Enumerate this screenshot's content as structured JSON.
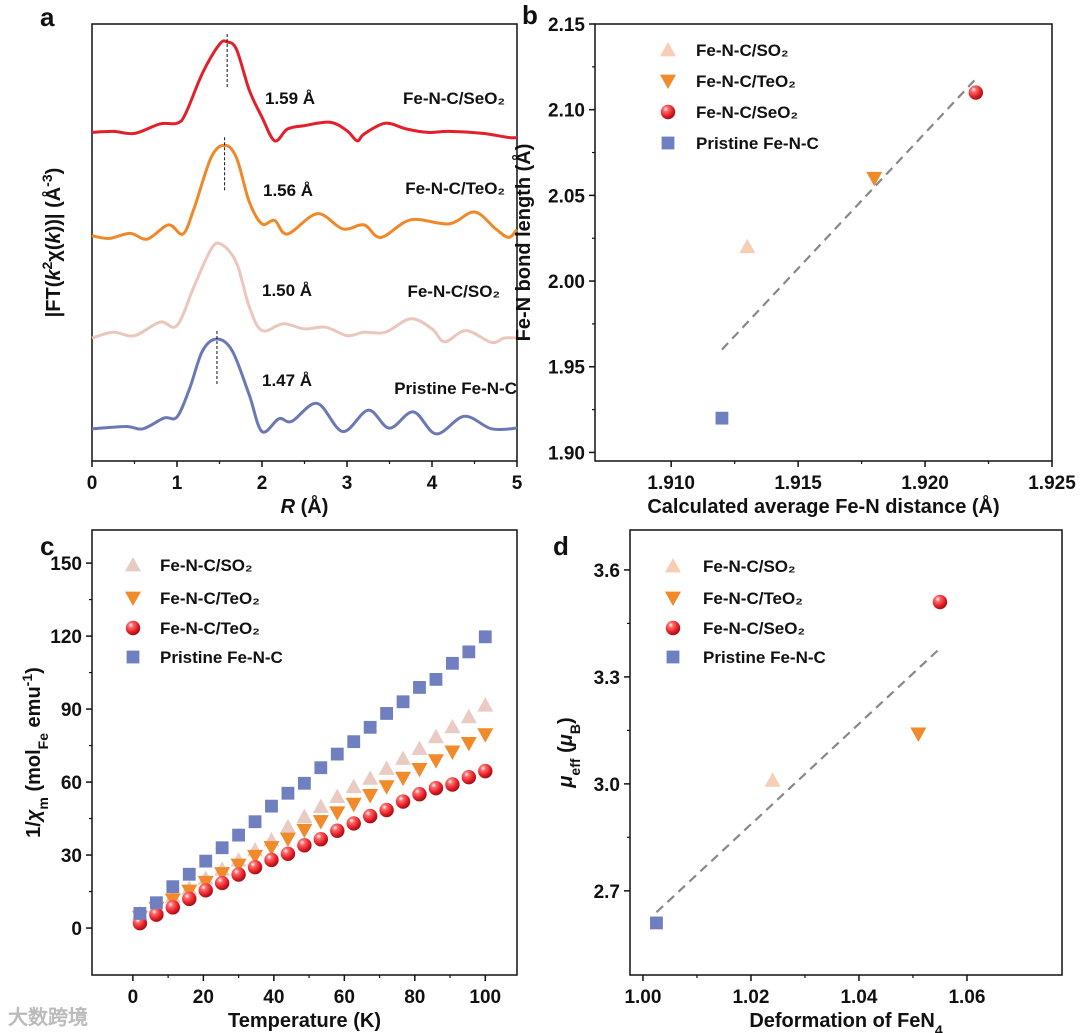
{
  "watermark": "大数跨境",
  "chart_data": [
    {
      "panel": "a",
      "type": "line",
      "xlabel": [
        {
          "t": "R",
          "i": true
        },
        {
          "t": " (Å)"
        }
      ],
      "ylabel": [
        {
          "t": "|FT("
        },
        {
          "t": "k",
          "i": true
        },
        {
          "t": "2",
          "sup": true
        },
        {
          "t": "χ("
        },
        {
          "t": "k",
          "i": true
        },
        {
          "t": "))| (Å"
        },
        {
          "t": "-3",
          "sup": true
        },
        {
          "t": ")"
        }
      ],
      "xlim": [
        0,
        5
      ],
      "ylim": [
        0,
        12.9
      ],
      "xticks": [
        "0",
        "1",
        "2",
        "3",
        "4",
        "5"
      ],
      "xtick_values": [
        0,
        1,
        2,
        3,
        4,
        5
      ],
      "series": [
        {
          "name": "Fe-N-C/SeO₂",
          "color": "#e21f2b",
          "peak": 1.59,
          "peak_label": "1.59 Å",
          "x": [
            0,
            0.25,
            0.5,
            0.8,
            1.0,
            1.1,
            1.3,
            1.5,
            1.59,
            1.7,
            1.85,
            2.0,
            2.15,
            2.3,
            2.5,
            2.8,
            3.0,
            3.12,
            3.2,
            3.45,
            3.7,
            3.95,
            4.2,
            4.6,
            4.9,
            5
          ],
          "y": [
            9.7,
            9.73,
            9.67,
            9.95,
            9.97,
            10.25,
            11.45,
            12.3,
            12.37,
            12.15,
            10.95,
            10.15,
            9.45,
            9.8,
            9.9,
            10.0,
            9.75,
            9.45,
            9.65,
            9.97,
            9.8,
            9.7,
            9.73,
            9.67,
            9.55,
            9.55
          ]
        },
        {
          "name": "Fe-N-C/TeO₂",
          "color": "#f0882a",
          "peak": 1.56,
          "peak_label": "1.56 Å",
          "x": [
            0,
            0.2,
            0.45,
            0.65,
            0.9,
            1.07,
            1.2,
            1.4,
            1.56,
            1.7,
            1.85,
            2.0,
            2.15,
            2.3,
            2.65,
            2.95,
            3.2,
            3.4,
            3.75,
            4.2,
            4.5,
            4.75,
            4.9,
            5
          ],
          "y": [
            6.65,
            6.57,
            6.72,
            6.55,
            6.97,
            6.7,
            7.45,
            8.95,
            9.32,
            8.95,
            7.65,
            7.0,
            7.1,
            6.7,
            7.3,
            6.85,
            6.97,
            6.6,
            7.12,
            7.0,
            7.35,
            6.85,
            6.6,
            6.83
          ]
        },
        {
          "name": "Fe-N-C/SO₂",
          "color": "#ebc6bd",
          "peak": 1.5,
          "peak_label": "1.50 Å",
          "x": [
            0,
            0.25,
            0.5,
            0.8,
            1.0,
            1.2,
            1.4,
            1.52,
            1.7,
            1.85,
            2.0,
            2.25,
            2.5,
            2.75,
            3.0,
            3.2,
            3.45,
            3.75,
            4.0,
            4.15,
            4.4,
            4.7,
            4.85,
            5
          ],
          "y": [
            3.63,
            3.8,
            3.7,
            4.1,
            4.0,
            5.15,
            6.25,
            6.4,
            5.85,
            4.55,
            3.85,
            4.05,
            3.9,
            3.95,
            3.7,
            3.8,
            3.8,
            4.2,
            3.9,
            3.52,
            3.85,
            3.5,
            3.63,
            3.63
          ]
        },
        {
          "name": "Pristine Fe-N-C",
          "color": "#6b78b6",
          "peak": 1.47,
          "peak_label": "1.47 Å",
          "x": [
            0,
            0.4,
            0.6,
            0.85,
            1.0,
            1.15,
            1.3,
            1.47,
            1.65,
            1.85,
            2.0,
            2.2,
            2.35,
            2.65,
            2.95,
            3.25,
            3.5,
            3.78,
            4.05,
            4.38,
            4.7,
            5
          ],
          "y": [
            0.95,
            1.02,
            0.95,
            1.27,
            1.3,
            2.15,
            3.25,
            3.6,
            3.25,
            1.95,
            0.87,
            1.25,
            1.17,
            1.7,
            0.87,
            1.5,
            0.97,
            1.45,
            0.8,
            1.32,
            0.95,
            0.97
          ]
        }
      ]
    },
    {
      "panel": "b",
      "type": "scatter",
      "xlabel": [
        {
          "t": "Calculated average Fe-N distance (Å)"
        }
      ],
      "ylabel": [
        {
          "t": "Fe-N bond length (Å)"
        }
      ],
      "xlim": [
        1.907,
        1.925
      ],
      "ylim": [
        1.895,
        2.15
      ],
      "xticks": [
        "1.910",
        "1.915",
        "1.920",
        "1.925"
      ],
      "xtick_values": [
        1.91,
        1.915,
        1.92,
        1.925
      ],
      "yticks": [
        "1.90",
        "1.95",
        "2.00",
        "2.05",
        "2.10",
        "2.15"
      ],
      "ytick_values": [
        1.9,
        1.95,
        2.0,
        2.05,
        2.1,
        2.15
      ],
      "fit": {
        "x": [
          1.912,
          1.922
        ],
        "y": [
          1.96,
          2.118
        ]
      },
      "series": [
        {
          "name": "Fe-N-C/SO₂",
          "marker": "triangle-up",
          "color": "#f7cdb6",
          "x": [
            1.913
          ],
          "y": [
            2.02
          ]
        },
        {
          "name": "Fe-N-C/TeO₂",
          "marker": "triangle-down",
          "color": "#f08a2a",
          "x": [
            1.918
          ],
          "y": [
            2.06
          ]
        },
        {
          "name": "Fe-N-C/SeO₂",
          "marker": "sphere",
          "color": "#e41e26",
          "x": [
            1.922
          ],
          "y": [
            2.11
          ]
        },
        {
          "name": "Pristine Fe-N-C",
          "marker": "square",
          "color": "#6f7fbf",
          "x": [
            1.912
          ],
          "y": [
            1.92
          ]
        }
      ]
    },
    {
      "panel": "c",
      "type": "scatter",
      "xlabel": [
        {
          "t": "Temperature (K)"
        }
      ],
      "ylabel": [
        {
          "t": "1/"
        },
        {
          "t": "χ",
          "i": true
        },
        {
          "t": "m",
          "sub": true
        },
        {
          "t": " (mol"
        },
        {
          "t": "Fe",
          "sub": true
        },
        {
          "t": " emu"
        },
        {
          "t": "-1",
          "sup": true
        },
        {
          "t": ")"
        }
      ],
      "xlim": [
        -11.6,
        109
      ],
      "ylim": [
        -19.3,
        163.6
      ],
      "xticks": [
        "0",
        "20",
        "40",
        "60",
        "80",
        "100"
      ],
      "xtick_values": [
        0,
        20,
        40,
        60,
        80,
        100
      ],
      "yticks": [
        "0",
        "30",
        "60",
        "90",
        "120",
        "150"
      ],
      "ytick_values": [
        0,
        30,
        60,
        90,
        120,
        150
      ],
      "x": [
        2,
        6.67,
        11.33,
        16,
        20.67,
        25.33,
        30,
        34.67,
        39.33,
        44,
        48.67,
        53.33,
        58,
        62.67,
        67.33,
        72,
        76.67,
        81.33,
        86,
        90.67,
        95.33,
        100
      ],
      "series": [
        {
          "name": "Fe-N-C/SO₂",
          "marker": "triangle-up",
          "color": "#e9cbc4",
          "y": [
            6.0,
            8.8,
            12.9,
            16.3,
            20.4,
            24.1,
            27.9,
            32.1,
            36.2,
            41.6,
            45.8,
            49.9,
            54.0,
            58.1,
            61.5,
            65.6,
            69.7,
            73.8,
            78.6,
            82.7,
            86.8,
            91.6
          ]
        },
        {
          "name": "Fe-N-C/TeO₂",
          "marker": "triangle-down",
          "color": "#f08a2a",
          "y": [
            4.5,
            8.1,
            11.6,
            15.2,
            18.8,
            22.4,
            25.9,
            29.5,
            33.1,
            36.6,
            40.2,
            43.8,
            47.4,
            50.9,
            54.5,
            58.1,
            61.6,
            65.2,
            68.8,
            72.4,
            75.9,
            79.5
          ]
        },
        {
          "name": "Fe-N-C/TeO₂",
          "marker": "sphere",
          "color": "#e41e26",
          "y": [
            2.0,
            5.5,
            8.5,
            12.0,
            15.5,
            18.5,
            22.0,
            25.0,
            28.0,
            30.5,
            34.0,
            36.5,
            40.0,
            43.0,
            46.0,
            48.5,
            52.0,
            55.0,
            57.5,
            59.0,
            62.0,
            64.5
          ]
        },
        {
          "name": "Pristine Fe-N-C",
          "marker": "square",
          "color": "#6f7fbf",
          "y": [
            6.0,
            10.4,
            17.0,
            22.1,
            27.5,
            33.0,
            38.2,
            43.7,
            50.1,
            55.4,
            59.5,
            65.9,
            71.5,
            76.6,
            82.5,
            88.2,
            93.0,
            98.9,
            102.2,
            108.8,
            113.5,
            119.7
          ]
        }
      ]
    },
    {
      "panel": "d",
      "type": "scatter",
      "xlabel": [
        {
          "t": "Deformation of FeN"
        },
        {
          "t": "4",
          "sub": true
        }
      ],
      "ylabel": [
        {
          "t": "μ",
          "i": true
        },
        {
          "t": "eff",
          "sub": true
        },
        {
          "t": " ("
        },
        {
          "t": "μ",
          "i": true
        },
        {
          "t": "B",
          "sub": true
        },
        {
          "t": ")"
        }
      ],
      "xlim": [
        0.9976,
        1.0776
      ],
      "ylim": [
        2.464,
        3.712
      ],
      "xticks": [
        "1.00",
        "1.02",
        "1.04",
        "1.06"
      ],
      "xtick_values": [
        1.0,
        1.02,
        1.04,
        1.06
      ],
      "yticks": [
        "2.7",
        "3.0",
        "3.3",
        "3.6"
      ],
      "ytick_values": [
        2.7,
        3.0,
        3.3,
        3.6
      ],
      "fit": {
        "x": [
          1.0025,
          1.055
        ],
        "y": [
          2.64,
          3.38
        ]
      },
      "series": [
        {
          "name": "Fe-N-C/SO₂",
          "marker": "triangle-up",
          "color": "#f7cdb6",
          "x": [
            1.024
          ],
          "y": [
            3.01
          ]
        },
        {
          "name": "Fe-N-C/TeO₂",
          "marker": "triangle-down",
          "color": "#f08a2a",
          "x": [
            1.051
          ],
          "y": [
            3.14
          ]
        },
        {
          "name": "Fe-N-C/SeO₂",
          "marker": "sphere",
          "color": "#e41e26",
          "x": [
            1.055
          ],
          "y": [
            3.51
          ]
        },
        {
          "name": "Pristine Fe-N-C",
          "marker": "square",
          "color": "#6f7fbf",
          "x": [
            1.0025
          ],
          "y": [
            2.61
          ]
        }
      ]
    }
  ]
}
